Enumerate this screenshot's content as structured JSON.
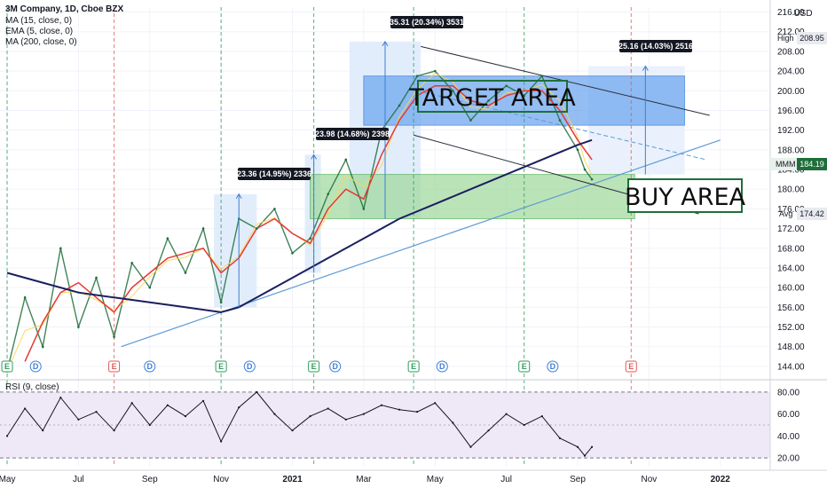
{
  "legend": {
    "title": "3M Company, 1D, Cboe BZX",
    "ma15": "MA (15, close, 0)",
    "ema5": "EMA (5, close, 0)",
    "ma200": "MA (200, close, 0)",
    "rsi": "RSI (9, close)",
    "currency": "USD"
  },
  "annotations": {
    "target_area": "TARGET AREA",
    "buy_area": "BUY AREA",
    "callouts": [
      "23.36 (14.95%) 2336",
      "23.98 (14.68%) 2398",
      "35.31 (20.34%) 3531",
      "25.16 (14.03%) 2516"
    ],
    "earnings_letter": "E",
    "dividend_letter": "D"
  },
  "price_badges": {
    "high_label": "High",
    "high_value": "208.95",
    "ticker": "MMM",
    "last_value": "184.19",
    "avg_label": "Avg",
    "avg_value": "174.42"
  },
  "colors": {
    "price_line": "#1f6e3a",
    "ma15": "#e53935",
    "ema5": "#ffd54f",
    "ma200": "#1b1f5e",
    "trend": "#5b9bd5",
    "target_fill": "#6fa8ef",
    "buy_fill": "#9fd89b",
    "rsi": "#131722",
    "rsi_band": "#efe8f7"
  },
  "chart_data": [
    {
      "type": "line",
      "name": "price",
      "y_axis_ticks": [
        "144.00",
        "148.00",
        "152.00",
        "156.00",
        "160.00",
        "164.00",
        "168.00",
        "172.00",
        "176.00",
        "180.00",
        "184.00",
        "188.00",
        "192.00",
        "196.00",
        "200.00",
        "204.00",
        "208.00",
        "212.00",
        "216.00"
      ],
      "ylim": [
        142,
        217
      ],
      "x_axis_ticks": [
        "May",
        "Jul",
        "Sep",
        "Nov",
        "2021",
        "Mar",
        "May",
        "Jul",
        "Sep",
        "Nov",
        "2022"
      ],
      "x_tick_months": [
        0,
        2,
        4,
        6,
        8,
        10,
        12,
        14,
        16,
        18,
        20
      ],
      "xlim": [
        -0.2,
        21.4
      ],
      "close_series": {
        "x": [
          0,
          0.5,
          1,
          1.5,
          2,
          2.5,
          3,
          3.5,
          4,
          4.5,
          5,
          5.5,
          6,
          6.5,
          7,
          7.5,
          8,
          8.5,
          9,
          9.5,
          10,
          10.5,
          11,
          11.5,
          12,
          12.5,
          13,
          13.5,
          14,
          14.5,
          15,
          15.5,
          16,
          16.2,
          16.4
        ],
        "values": [
          143,
          158,
          148,
          168,
          152,
          162,
          150,
          165,
          160,
          170,
          163,
          172,
          157,
          174,
          172,
          176,
          167,
          170,
          179,
          186,
          176,
          192,
          197,
          203,
          204,
          200,
          194,
          198,
          201,
          199,
          203,
          194,
          188,
          184,
          182
        ]
      },
      "ma15": {
        "x": [
          0.5,
          1,
          1.5,
          2,
          2.5,
          3,
          3.5,
          4,
          4.5,
          5,
          5.5,
          6,
          6.5,
          7,
          7.5,
          8,
          8.5,
          9,
          9.5,
          10,
          10.5,
          11,
          11.5,
          12,
          12.5,
          13,
          13.5,
          14,
          14.5,
          15,
          15.5,
          16,
          16.4
        ],
        "values": [
          145,
          153,
          159,
          161,
          158,
          155,
          160,
          163,
          166,
          167,
          168,
          163,
          166,
          172,
          174,
          171,
          169,
          176,
          180,
          178,
          187,
          194,
          199,
          201,
          201,
          198,
          197,
          199,
          200,
          200,
          196,
          190,
          186
        ]
      },
      "ma200": {
        "x": [
          0,
          1,
          2,
          3,
          4,
          5,
          6,
          6.5,
          7,
          8,
          9,
          10,
          11,
          12,
          13,
          14,
          15,
          16,
          16.4
        ],
        "values": [
          163,
          161,
          159,
          158,
          157,
          156,
          155,
          156,
          158,
          162,
          166,
          170,
          174,
          177,
          180,
          183,
          186,
          189,
          190
        ]
      },
      "zones": {
        "target_area": [
          193,
          203
        ],
        "buy_area": [
          174,
          183
        ]
      }
    },
    {
      "type": "line",
      "name": "RSI",
      "y_axis_ticks": [
        "20.00",
        "40.00",
        "60.00",
        "80.00"
      ],
      "ylim": [
        12,
        88
      ],
      "x": [
        0,
        0.5,
        1,
        1.5,
        2,
        2.5,
        3,
        3.5,
        4,
        4.5,
        5,
        5.5,
        6,
        6.5,
        7,
        7.5,
        8,
        8.5,
        9,
        9.5,
        10,
        10.5,
        11,
        11.5,
        12,
        12.5,
        13,
        13.5,
        14,
        14.5,
        15,
        15.5,
        16,
        16.2,
        16.4
      ],
      "values": [
        40,
        65,
        45,
        75,
        55,
        62,
        45,
        70,
        50,
        68,
        58,
        72,
        35,
        66,
        80,
        60,
        45,
        58,
        65,
        55,
        60,
        68,
        64,
        62,
        70,
        52,
        30,
        45,
        60,
        50,
        58,
        38,
        30,
        22,
        30
      ]
    }
  ]
}
